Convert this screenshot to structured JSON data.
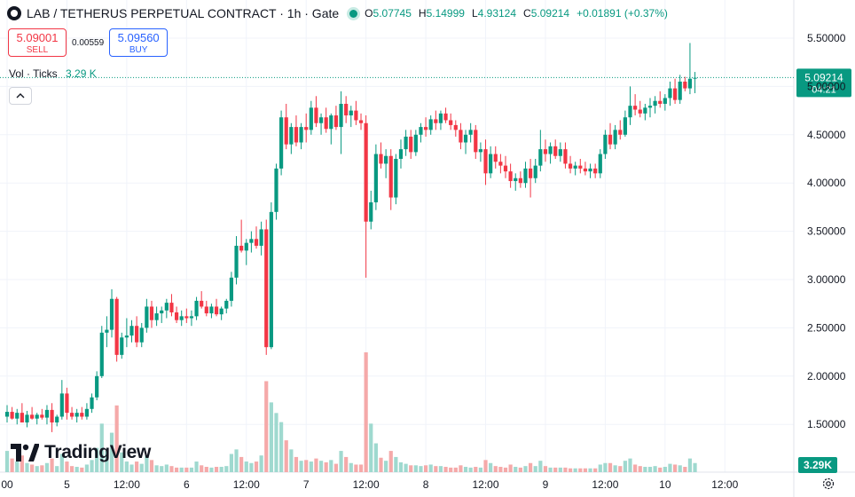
{
  "header": {
    "symbol": "LAB / TETHERUS PERPETUAL CONTRACT · 1h · Gate",
    "open_label": "O",
    "open": "5.07745",
    "high_label": "H",
    "high": "5.14999",
    "low_label": "L",
    "low": "4.93124",
    "close_label": "C",
    "close": "5.09214",
    "change": "+0.01891 (+0.37%)"
  },
  "trade": {
    "sell_price": "5.09001",
    "sell_label": "SELL",
    "spread": "0.00559",
    "buy_price": "5.09560",
    "buy_label": "BUY"
  },
  "volume_indicator": {
    "label": "Vol · Ticks",
    "value": "3.29 K",
    "last_badge": "3.29K"
  },
  "price_badge": {
    "price": "5.09214",
    "countdown": "04:21"
  },
  "watermark": "TradingView",
  "colors": {
    "up": "#089981",
    "down": "#f23645",
    "vol_up": "#9fd9cf",
    "vol_down": "#f5a9a9",
    "grid": "#f0f3fa",
    "axis_text": "#131722"
  },
  "icons": [
    "chevron-up-icon",
    "settings-icon",
    "tradingview-logo-icon",
    "status-dot-icon"
  ],
  "chart_data": {
    "type": "candlestick",
    "y_ticks": [
      "5.50000",
      "5.00000",
      "4.50000",
      "4.00000",
      "3.50000",
      "3.00000",
      "2.50000",
      "2.00000",
      "1.50000"
    ],
    "ylim": [
      1.0,
      5.75
    ],
    "x_ticks": [
      {
        "label": "00",
        "i": 0
      },
      {
        "label": "5",
        "i": 12
      },
      {
        "label": "12:00",
        "i": 24
      },
      {
        "label": "6",
        "i": 36
      },
      {
        "label": "12:00",
        "i": 48
      },
      {
        "label": "7",
        "i": 60
      },
      {
        "label": "12:00",
        "i": 72
      },
      {
        "label": "8",
        "i": 84
      },
      {
        "label": "12:00",
        "i": 96
      },
      {
        "label": "9",
        "i": 108
      },
      {
        "label": "12:00",
        "i": 120
      },
      {
        "label": "10",
        "i": 132
      },
      {
        "label": "12:00",
        "i": 144
      }
    ],
    "candles": [
      [
        1.58,
        1.7,
        1.52,
        1.63,
        140
      ],
      [
        1.63,
        1.68,
        1.55,
        1.56,
        90
      ],
      [
        1.56,
        1.66,
        1.5,
        1.62,
        70
      ],
      [
        1.62,
        1.72,
        1.55,
        1.52,
        110
      ],
      [
        1.52,
        1.64,
        1.47,
        1.6,
        60
      ],
      [
        1.6,
        1.68,
        1.55,
        1.56,
        50
      ],
      [
        1.56,
        1.62,
        1.5,
        1.6,
        40
      ],
      [
        1.6,
        1.66,
        1.55,
        1.57,
        45
      ],
      [
        1.57,
        1.7,
        1.5,
        1.65,
        60
      ],
      [
        1.65,
        1.72,
        1.42,
        1.52,
        90
      ],
      [
        1.52,
        1.6,
        1.48,
        1.58,
        40
      ],
      [
        1.58,
        1.96,
        1.55,
        1.82,
        120
      ],
      [
        1.82,
        1.88,
        1.55,
        1.62,
        70
      ],
      [
        1.62,
        1.68,
        1.55,
        1.58,
        40
      ],
      [
        1.58,
        1.66,
        1.52,
        1.62,
        35
      ],
      [
        1.62,
        1.68,
        1.55,
        1.58,
        30
      ],
      [
        1.58,
        1.72,
        1.55,
        1.66,
        50
      ],
      [
        1.66,
        1.82,
        1.62,
        1.78,
        80
      ],
      [
        1.78,
        2.05,
        1.75,
        2.0,
        160
      ],
      [
        2.0,
        2.52,
        1.98,
        2.45,
        320
      ],
      [
        2.45,
        2.62,
        2.3,
        2.48,
        140
      ],
      [
        2.48,
        2.9,
        2.4,
        2.8,
        260
      ],
      [
        2.8,
        2.82,
        2.15,
        2.22,
        440
      ],
      [
        2.22,
        2.45,
        2.18,
        2.4,
        130
      ],
      [
        2.4,
        2.6,
        2.3,
        2.42,
        70
      ],
      [
        2.42,
        2.58,
        2.35,
        2.52,
        50
      ],
      [
        2.52,
        2.62,
        2.3,
        2.35,
        70
      ],
      [
        2.35,
        2.55,
        2.3,
        2.5,
        55
      ],
      [
        2.5,
        2.8,
        2.45,
        2.72,
        110
      ],
      [
        2.72,
        2.78,
        2.5,
        2.58,
        80
      ],
      [
        2.58,
        2.72,
        2.52,
        2.65,
        45
      ],
      [
        2.65,
        2.72,
        2.55,
        2.68,
        40
      ],
      [
        2.68,
        2.8,
        2.6,
        2.76,
        50
      ],
      [
        2.76,
        2.85,
        2.62,
        2.66,
        40
      ],
      [
        2.66,
        2.72,
        2.55,
        2.58,
        30
      ],
      [
        2.58,
        2.68,
        2.52,
        2.62,
        30
      ],
      [
        2.62,
        2.7,
        2.55,
        2.6,
        30
      ],
      [
        2.6,
        2.68,
        2.52,
        2.62,
        30
      ],
      [
        2.62,
        2.82,
        2.58,
        2.78,
        70
      ],
      [
        2.78,
        2.88,
        2.7,
        2.72,
        45
      ],
      [
        2.72,
        2.78,
        2.62,
        2.65,
        35
      ],
      [
        2.65,
        2.75,
        2.6,
        2.72,
        30
      ],
      [
        2.72,
        2.8,
        2.62,
        2.64,
        35
      ],
      [
        2.64,
        2.72,
        2.58,
        2.7,
        35
      ],
      [
        2.7,
        2.8,
        2.65,
        2.78,
        40
      ],
      [
        2.78,
        3.08,
        2.72,
        3.02,
        120
      ],
      [
        3.02,
        3.45,
        2.95,
        3.35,
        150
      ],
      [
        3.35,
        3.62,
        3.28,
        3.3,
        100
      ],
      [
        3.3,
        3.42,
        3.15,
        3.38,
        70
      ],
      [
        3.38,
        3.5,
        3.28,
        3.42,
        60
      ],
      [
        3.42,
        3.55,
        3.32,
        3.35,
        70
      ],
      [
        3.35,
        3.6,
        3.25,
        3.52,
        110
      ],
      [
        3.52,
        3.62,
        2.22,
        2.3,
        600
      ],
      [
        2.3,
        3.8,
        2.28,
        3.7,
        460
      ],
      [
        3.7,
        4.2,
        3.62,
        4.15,
        390
      ],
      [
        4.15,
        4.75,
        4.08,
        4.68,
        330
      ],
      [
        4.68,
        4.82,
        4.35,
        4.4,
        210
      ],
      [
        4.4,
        4.62,
        4.3,
        4.58,
        150
      ],
      [
        4.58,
        4.7,
        4.38,
        4.42,
        100
      ],
      [
        4.42,
        4.62,
        4.35,
        4.58,
        75
      ],
      [
        4.58,
        4.72,
        4.42,
        4.55,
        80
      ],
      [
        4.55,
        4.85,
        4.5,
        4.78,
        70
      ],
      [
        4.78,
        4.9,
        4.58,
        4.62,
        90
      ],
      [
        4.62,
        4.72,
        4.5,
        4.68,
        75
      ],
      [
        4.68,
        4.78,
        4.52,
        4.56,
        65
      ],
      [
        4.56,
        4.72,
        4.4,
        4.7,
        80
      ],
      [
        4.7,
        4.8,
        4.55,
        4.58,
        55
      ],
      [
        4.58,
        4.95,
        4.3,
        4.82,
        140
      ],
      [
        4.82,
        4.9,
        4.62,
        4.7,
        100
      ],
      [
        4.7,
        4.8,
        4.58,
        4.75,
        60
      ],
      [
        4.75,
        4.85,
        4.6,
        4.65,
        50
      ],
      [
        4.65,
        4.72,
        4.55,
        4.62,
        50
      ],
      [
        4.62,
        4.7,
        3.02,
        3.6,
        790
      ],
      [
        3.6,
        3.92,
        3.52,
        3.8,
        320
      ],
      [
        3.8,
        4.4,
        3.72,
        4.3,
        190
      ],
      [
        4.3,
        4.42,
        4.15,
        4.2,
        95
      ],
      [
        4.2,
        4.35,
        4.05,
        4.28,
        75
      ],
      [
        4.28,
        4.35,
        3.72,
        3.85,
        140
      ],
      [
        3.85,
        4.3,
        3.78,
        4.25,
        100
      ],
      [
        4.25,
        4.45,
        4.15,
        4.35,
        65
      ],
      [
        4.35,
        4.55,
        4.28,
        4.48,
        55
      ],
      [
        4.48,
        4.55,
        4.25,
        4.32,
        45
      ],
      [
        4.32,
        4.55,
        4.28,
        4.5,
        45
      ],
      [
        4.5,
        4.62,
        4.42,
        4.58,
        40
      ],
      [
        4.58,
        4.68,
        4.48,
        4.55,
        45
      ],
      [
        4.55,
        4.7,
        4.5,
        4.66,
        50
      ],
      [
        4.66,
        4.75,
        4.55,
        4.62,
        40
      ],
      [
        4.62,
        4.75,
        4.55,
        4.72,
        40
      ],
      [
        4.72,
        4.78,
        4.62,
        4.65,
        35
      ],
      [
        4.65,
        4.72,
        4.55,
        4.6,
        30
      ],
      [
        4.6,
        4.65,
        4.48,
        4.55,
        30
      ],
      [
        4.55,
        4.62,
        4.35,
        4.42,
        45
      ],
      [
        4.42,
        4.55,
        4.3,
        4.5,
        35
      ],
      [
        4.5,
        4.62,
        4.42,
        4.55,
        30
      ],
      [
        4.55,
        4.6,
        4.25,
        4.32,
        35
      ],
      [
        4.32,
        4.42,
        4.22,
        4.35,
        30
      ],
      [
        4.35,
        4.45,
        3.98,
        4.1,
        80
      ],
      [
        4.1,
        4.38,
        4.05,
        4.3,
        60
      ],
      [
        4.3,
        4.38,
        4.15,
        4.22,
        40
      ],
      [
        4.22,
        4.3,
        4.1,
        4.18,
        35
      ],
      [
        4.18,
        4.28,
        4.05,
        4.12,
        30
      ],
      [
        4.12,
        4.2,
        3.95,
        4.02,
        50
      ],
      [
        4.02,
        4.1,
        3.92,
        4.05,
        35
      ],
      [
        4.05,
        4.12,
        3.95,
        4.0,
        30
      ],
      [
        4.0,
        4.22,
        3.95,
        4.15,
        40
      ],
      [
        4.15,
        4.25,
        3.85,
        4.05,
        60
      ],
      [
        4.05,
        4.25,
        4.0,
        4.18,
        40
      ],
      [
        4.18,
        4.55,
        4.12,
        4.35,
        75
      ],
      [
        4.35,
        4.45,
        4.22,
        4.3,
        40
      ],
      [
        4.3,
        4.42,
        4.2,
        4.38,
        30
      ],
      [
        4.38,
        4.45,
        4.25,
        4.28,
        30
      ],
      [
        4.28,
        4.42,
        4.22,
        4.35,
        30
      ],
      [
        4.35,
        4.42,
        4.15,
        4.2,
        30
      ],
      [
        4.2,
        4.28,
        4.1,
        4.15,
        25
      ],
      [
        4.15,
        4.22,
        4.08,
        4.18,
        25
      ],
      [
        4.18,
        4.25,
        4.1,
        4.15,
        25
      ],
      [
        4.15,
        4.22,
        4.08,
        4.12,
        25
      ],
      [
        4.12,
        4.2,
        4.05,
        4.15,
        25
      ],
      [
        4.15,
        4.2,
        4.05,
        4.1,
        25
      ],
      [
        4.1,
        4.35,
        4.05,
        4.3,
        50
      ],
      [
        4.3,
        4.55,
        4.25,
        4.5,
        60
      ],
      [
        4.5,
        4.62,
        4.35,
        4.4,
        60
      ],
      [
        4.4,
        4.6,
        4.35,
        4.55,
        45
      ],
      [
        4.55,
        4.65,
        4.45,
        4.5,
        40
      ],
      [
        4.5,
        4.75,
        4.48,
        4.68,
        75
      ],
      [
        4.68,
        5.0,
        4.6,
        4.8,
        90
      ],
      [
        4.8,
        4.92,
        4.7,
        4.76,
        50
      ],
      [
        4.76,
        4.85,
        4.68,
        4.72,
        40
      ],
      [
        4.72,
        4.82,
        4.65,
        4.78,
        35
      ],
      [
        4.78,
        4.88,
        4.68,
        4.8,
        35
      ],
      [
        4.8,
        4.9,
        4.72,
        4.85,
        40
      ],
      [
        4.85,
        4.95,
        4.78,
        4.82,
        30
      ],
      [
        4.82,
        4.92,
        4.75,
        4.88,
        35
      ],
      [
        4.88,
        5.05,
        4.8,
        4.98,
        55
      ],
      [
        4.98,
        5.08,
        4.82,
        4.86,
        50
      ],
      [
        4.86,
        5.12,
        4.82,
        5.05,
        45
      ],
      [
        5.05,
        5.1,
        4.95,
        4.98,
        35
      ],
      [
        4.98,
        5.45,
        4.92,
        5.08,
        90
      ],
      [
        5.08,
        5.15,
        4.93,
        5.09,
        60
      ]
    ]
  }
}
